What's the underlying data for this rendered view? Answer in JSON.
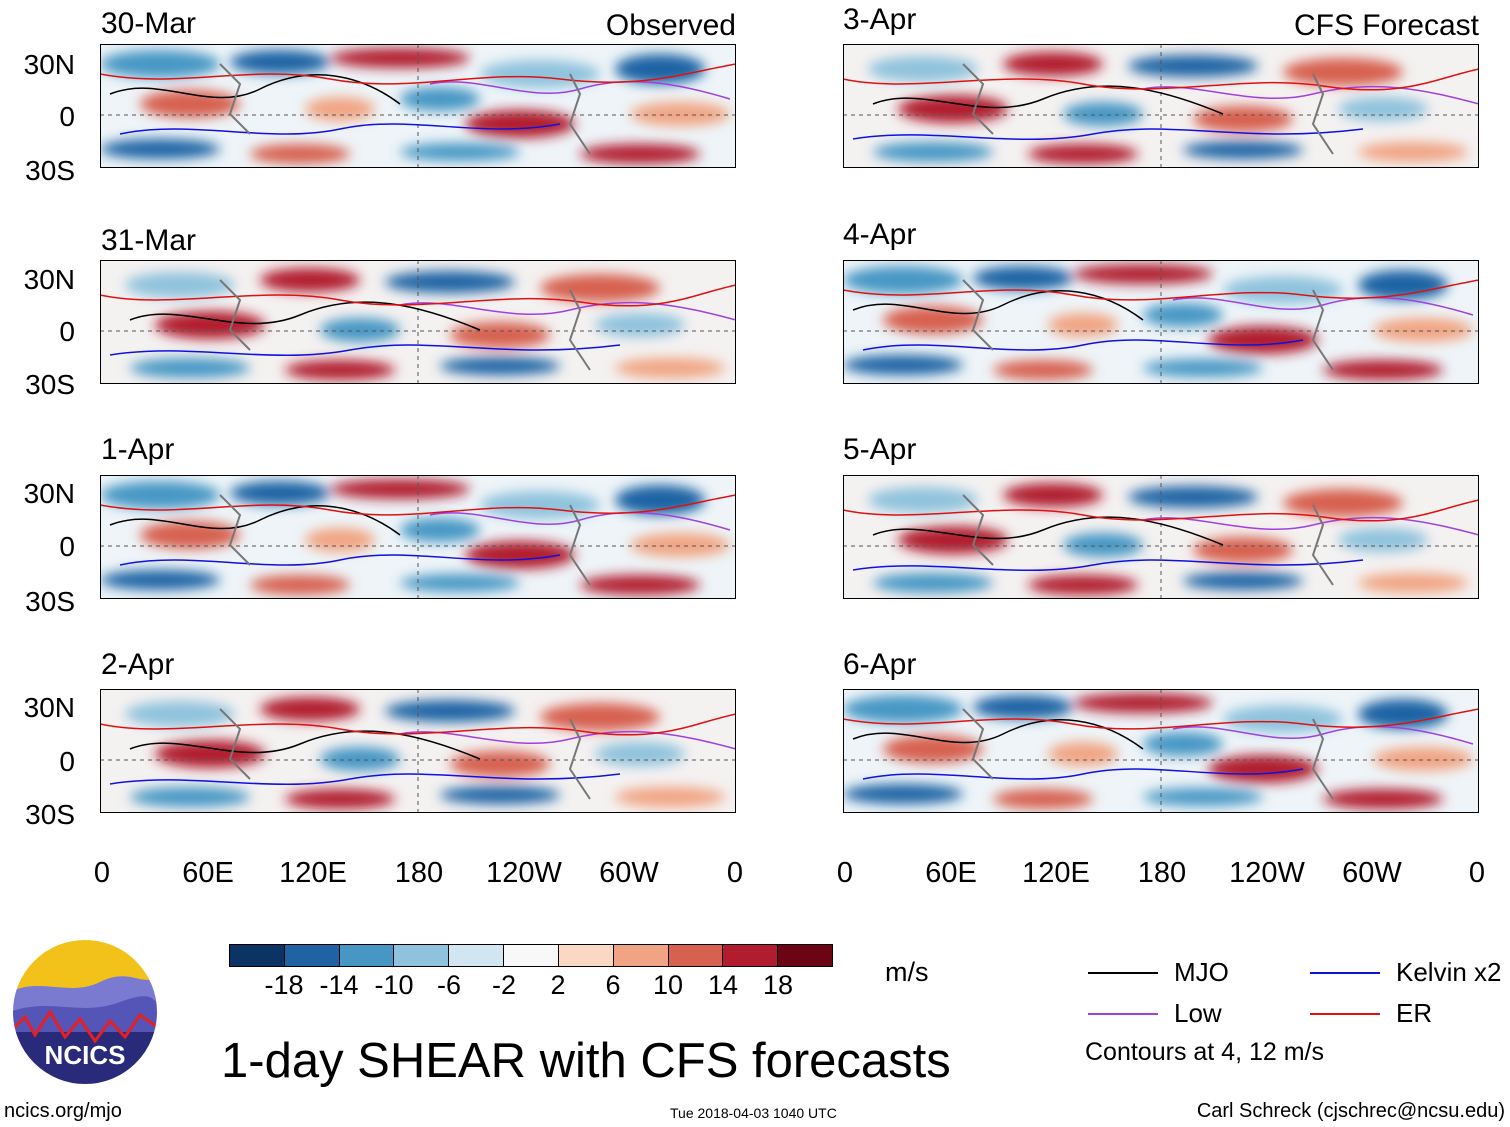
{
  "title": "1-day SHEAR with CFS forecasts",
  "observed_label": "Observed",
  "forecast_label": "CFS Forecast",
  "panels_left": [
    {
      "date": "30-Mar"
    },
    {
      "date": "31-Mar"
    },
    {
      "date": "1-Apr"
    },
    {
      "date": "2-Apr"
    }
  ],
  "panels_right": [
    {
      "date": "3-Apr"
    },
    {
      "date": "4-Apr"
    },
    {
      "date": "5-Apr"
    },
    {
      "date": "6-Apr"
    }
  ],
  "lat_labels": [
    "30N",
    "0",
    "30S"
  ],
  "lon_labels": [
    "0",
    "60E",
    "120E",
    "180",
    "120W",
    "60W",
    "0"
  ],
  "colorbar": {
    "unit": "m/s",
    "ticks": [
      "-18",
      "-14",
      "-10",
      "-6",
      "-2",
      "2",
      "6",
      "10",
      "14",
      "18"
    ],
    "colors": [
      "#0b3363",
      "#1f63a4",
      "#4797c5",
      "#8fc2dd",
      "#d2e6f1",
      "#f8f8f8",
      "#fbd8c4",
      "#f1a483",
      "#d7614f",
      "#b11c2f",
      "#6b0516"
    ]
  },
  "legend": {
    "items": [
      {
        "label": "MJO",
        "color": "#000000"
      },
      {
        "label": "Kelvin x2",
        "color": "#1010e0"
      },
      {
        "label": "Low",
        "color": "#a040e0"
      },
      {
        "label": "ER",
        "color": "#e01010"
      }
    ],
    "note": "Contours at 4, 12 m/s"
  },
  "logo_text": "NCICS",
  "footer": {
    "url": "ncics.org/mjo",
    "timestamp": "Tue 2018-04-03 1040 UTC",
    "credit": "Carl Schreck (cjschrec@ncsu.edu)"
  }
}
